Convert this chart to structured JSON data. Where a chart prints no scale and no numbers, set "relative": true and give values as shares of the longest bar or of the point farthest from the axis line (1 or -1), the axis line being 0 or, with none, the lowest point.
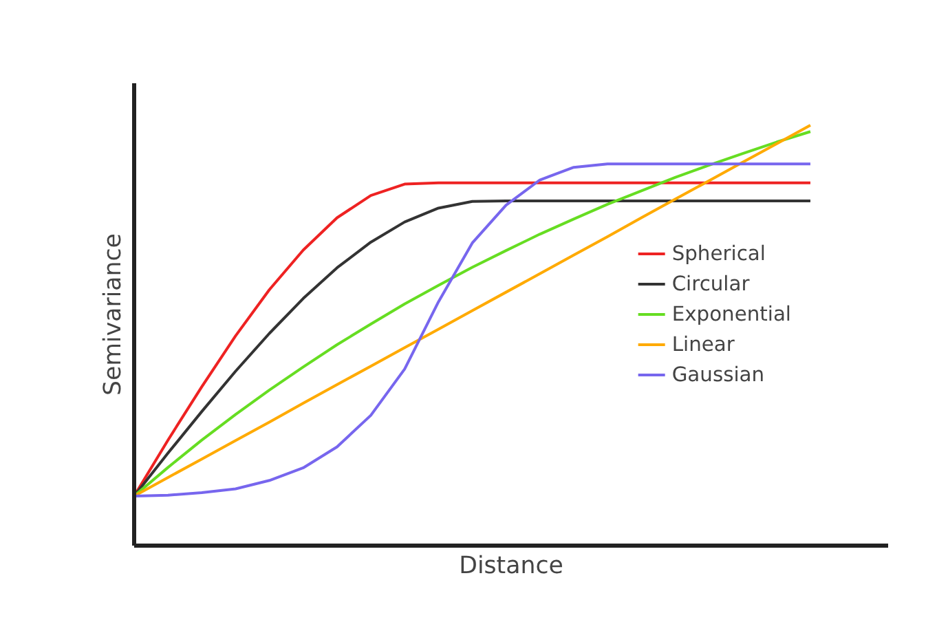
{
  "chart_data": {
    "type": "line",
    "relative": true,
    "xlabel": "Distance",
    "ylabel": "Semivariance",
    "categories": [
      null,
      null,
      null,
      null,
      null,
      null,
      null,
      null,
      null,
      null,
      null,
      null,
      null,
      null,
      null,
      null,
      null,
      null,
      null,
      null,
      null,
      null,
      null
    ],
    "series": [
      {
        "name": "Spherical",
        "color": "#ee2222",
        "values": [
          0.118,
          0.251,
          0.378,
          0.499,
          0.609,
          0.703,
          0.78,
          0.833,
          0.86,
          0.863,
          0.863,
          0.863,
          0.863,
          0.863,
          0.863,
          0.863,
          0.863,
          0.863,
          0.863,
          0.863,
          0.863,
          null,
          null
        ]
      },
      {
        "name": "Circular",
        "color": "#333333",
        "values": [
          0.118,
          0.22,
          0.319,
          0.415,
          0.505,
          0.588,
          0.661,
          0.722,
          0.77,
          0.803,
          0.819,
          0.82,
          0.82,
          0.82,
          0.82,
          0.82,
          0.82,
          0.82,
          0.82,
          0.82,
          0.82,
          null,
          null
        ]
      },
      {
        "name": "Exponential",
        "color": "#66dd22",
        "values": [
          0.118,
          0.186,
          0.251,
          0.312,
          0.37,
          0.425,
          0.478,
          0.527,
          0.575,
          0.619,
          0.662,
          0.702,
          0.741,
          0.777,
          0.812,
          0.844,
          0.876,
          0.905,
          0.933,
          0.96,
          0.985,
          null,
          null
        ]
      },
      {
        "name": "Linear",
        "color": "#ffaa00",
        "values": [
          0.118,
          0.162,
          0.206,
          0.25,
          0.294,
          0.339,
          0.383,
          0.427,
          0.471,
          0.515,
          0.559,
          0.603,
          0.647,
          0.691,
          0.735,
          0.78,
          0.824,
          0.868,
          0.912,
          0.956,
          1.0,
          null,
          null
        ]
      },
      {
        "name": "Gaussian",
        "color": "#7766ee",
        "values": [
          0.118,
          0.12,
          0.126,
          0.135,
          0.155,
          0.185,
          0.235,
          0.31,
          0.42,
          0.58,
          0.72,
          0.81,
          0.87,
          0.9,
          0.908,
          0.908,
          0.908,
          0.908,
          0.908,
          0.908,
          0.908,
          null,
          null
        ]
      }
    ],
    "legend": "right",
    "marker": "none",
    "line_style": "solid"
  }
}
